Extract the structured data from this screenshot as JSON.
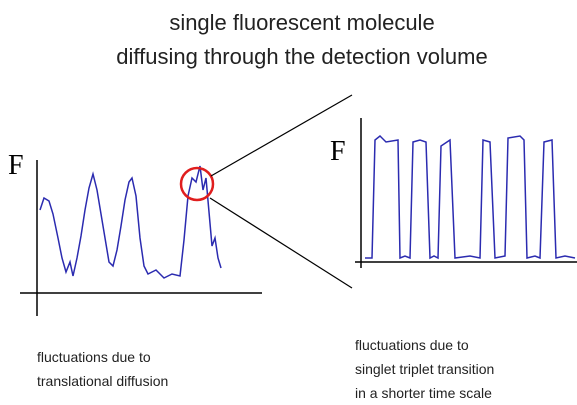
{
  "title": [
    "single fluorescent molecule",
    "diffusing through the detection volume"
  ],
  "left_panel": {
    "axis_label": "F",
    "caption": [
      "fluctuations due to",
      "translational diffusion"
    ]
  },
  "right_panel": {
    "axis_label": "F",
    "caption": [
      "fluctuations due to",
      "singlet triplet transition",
      "in a shorter time scale"
    ]
  }
}
